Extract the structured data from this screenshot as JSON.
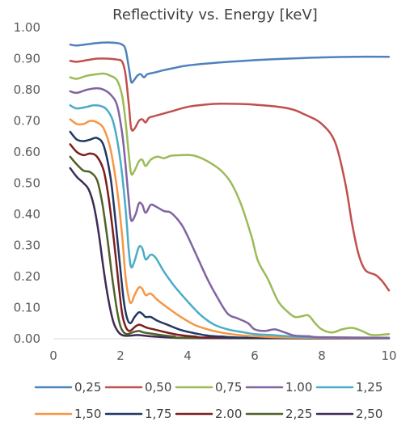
{
  "chart_data": {
    "type": "line",
    "title": "Reflectivity vs. Energy [keV]",
    "xlabel": "",
    "ylabel": "",
    "xlim": [
      0,
      10
    ],
    "ylim": [
      0,
      1
    ],
    "x_ticks": [
      "0",
      "2",
      "4",
      "6",
      "8",
      "10"
    ],
    "y_ticks": [
      "0.00",
      "0.10",
      "0.20",
      "0.30",
      "0.40",
      "0.50",
      "0.60",
      "0.70",
      "0.80",
      "0.90",
      "1.00"
    ],
    "grid": false,
    "legend_position": "bottom",
    "series": [
      {
        "name": "0,25",
        "color": "#4F81BD",
        "points": [
          [
            0.5,
            0.945
          ],
          [
            0.7,
            0.942
          ],
          [
            1.0,
            0.946
          ],
          [
            1.3,
            0.95
          ],
          [
            1.6,
            0.952
          ],
          [
            1.9,
            0.95
          ],
          [
            2.05,
            0.945
          ],
          [
            2.15,
            0.93
          ],
          [
            2.25,
            0.87
          ],
          [
            2.32,
            0.825
          ],
          [
            2.4,
            0.83
          ],
          [
            2.5,
            0.845
          ],
          [
            2.6,
            0.85
          ],
          [
            2.7,
            0.84
          ],
          [
            2.8,
            0.85
          ],
          [
            3.0,
            0.855
          ],
          [
            3.3,
            0.863
          ],
          [
            3.6,
            0.87
          ],
          [
            4.0,
            0.878
          ],
          [
            5.0,
            0.888
          ],
          [
            6.0,
            0.895
          ],
          [
            7.0,
            0.9
          ],
          [
            8.0,
            0.904
          ],
          [
            9.0,
            0.906
          ],
          [
            10.0,
            0.906
          ]
        ]
      },
      {
        "name": "0,50",
        "color": "#C0504D",
        "points": [
          [
            0.5,
            0.893
          ],
          [
            0.7,
            0.89
          ],
          [
            1.0,
            0.895
          ],
          [
            1.3,
            0.9
          ],
          [
            1.6,
            0.9
          ],
          [
            1.9,
            0.897
          ],
          [
            2.05,
            0.89
          ],
          [
            2.15,
            0.85
          ],
          [
            2.25,
            0.75
          ],
          [
            2.32,
            0.675
          ],
          [
            2.42,
            0.675
          ],
          [
            2.55,
            0.7
          ],
          [
            2.65,
            0.705
          ],
          [
            2.75,
            0.695
          ],
          [
            2.85,
            0.71
          ],
          [
            3.0,
            0.715
          ],
          [
            3.5,
            0.73
          ],
          [
            4.0,
            0.745
          ],
          [
            4.5,
            0.752
          ],
          [
            5.0,
            0.755
          ],
          [
            6.0,
            0.752
          ],
          [
            7.0,
            0.74
          ],
          [
            7.5,
            0.72
          ],
          [
            8.0,
            0.69
          ],
          [
            8.4,
            0.63
          ],
          [
            8.7,
            0.5
          ],
          [
            8.9,
            0.37
          ],
          [
            9.1,
            0.27
          ],
          [
            9.3,
            0.22
          ],
          [
            9.6,
            0.205
          ],
          [
            9.8,
            0.185
          ],
          [
            10.0,
            0.155
          ]
        ]
      },
      {
        "name": "0,75",
        "color": "#9BBB59",
        "points": [
          [
            0.5,
            0.84
          ],
          [
            0.7,
            0.835
          ],
          [
            1.0,
            0.845
          ],
          [
            1.3,
            0.85
          ],
          [
            1.5,
            0.852
          ],
          [
            1.7,
            0.845
          ],
          [
            1.9,
            0.83
          ],
          [
            2.05,
            0.78
          ],
          [
            2.15,
            0.7
          ],
          [
            2.25,
            0.59
          ],
          [
            2.32,
            0.53
          ],
          [
            2.42,
            0.54
          ],
          [
            2.55,
            0.57
          ],
          [
            2.65,
            0.575
          ],
          [
            2.75,
            0.555
          ],
          [
            2.9,
            0.575
          ],
          [
            3.1,
            0.585
          ],
          [
            3.3,
            0.58
          ],
          [
            3.5,
            0.588
          ],
          [
            3.8,
            0.59
          ],
          [
            4.1,
            0.59
          ],
          [
            4.3,
            0.585
          ],
          [
            4.6,
            0.57
          ],
          [
            5.0,
            0.54
          ],
          [
            5.3,
            0.5
          ],
          [
            5.6,
            0.43
          ],
          [
            5.9,
            0.33
          ],
          [
            6.1,
            0.25
          ],
          [
            6.4,
            0.19
          ],
          [
            6.7,
            0.12
          ],
          [
            7.0,
            0.085
          ],
          [
            7.2,
            0.07
          ],
          [
            7.4,
            0.072
          ],
          [
            7.6,
            0.075
          ],
          [
            7.8,
            0.05
          ],
          [
            8.0,
            0.03
          ],
          [
            8.3,
            0.02
          ],
          [
            8.6,
            0.03
          ],
          [
            8.9,
            0.035
          ],
          [
            9.2,
            0.025
          ],
          [
            9.5,
            0.012
          ],
          [
            10.0,
            0.015
          ]
        ]
      },
      {
        "name": "1.00",
        "color": "#8064A2",
        "points": [
          [
            0.5,
            0.795
          ],
          [
            0.7,
            0.79
          ],
          [
            1.0,
            0.8
          ],
          [
            1.3,
            0.805
          ],
          [
            1.5,
            0.8
          ],
          [
            1.7,
            0.785
          ],
          [
            1.9,
            0.75
          ],
          [
            2.05,
            0.66
          ],
          [
            2.15,
            0.56
          ],
          [
            2.25,
            0.44
          ],
          [
            2.32,
            0.38
          ],
          [
            2.45,
            0.4
          ],
          [
            2.55,
            0.435
          ],
          [
            2.65,
            0.43
          ],
          [
            2.75,
            0.405
          ],
          [
            2.9,
            0.43
          ],
          [
            3.05,
            0.425
          ],
          [
            3.3,
            0.41
          ],
          [
            3.5,
            0.405
          ],
          [
            3.8,
            0.37
          ],
          [
            4.0,
            0.33
          ],
          [
            4.3,
            0.26
          ],
          [
            4.6,
            0.19
          ],
          [
            4.9,
            0.13
          ],
          [
            5.2,
            0.08
          ],
          [
            5.5,
            0.065
          ],
          [
            5.8,
            0.05
          ],
          [
            6.0,
            0.03
          ],
          [
            6.3,
            0.025
          ],
          [
            6.6,
            0.03
          ],
          [
            6.9,
            0.02
          ],
          [
            7.2,
            0.01
          ],
          [
            7.6,
            0.008
          ],
          [
            8.0,
            0.005
          ],
          [
            10.0,
            0.003
          ]
        ]
      },
      {
        "name": "1,25",
        "color": "#4BACC6",
        "points": [
          [
            0.5,
            0.75
          ],
          [
            0.7,
            0.74
          ],
          [
            1.0,
            0.745
          ],
          [
            1.2,
            0.75
          ],
          [
            1.4,
            0.748
          ],
          [
            1.6,
            0.735
          ],
          [
            1.8,
            0.69
          ],
          [
            2.0,
            0.57
          ],
          [
            2.15,
            0.42
          ],
          [
            2.25,
            0.28
          ],
          [
            2.32,
            0.23
          ],
          [
            2.42,
            0.25
          ],
          [
            2.55,
            0.295
          ],
          [
            2.65,
            0.29
          ],
          [
            2.75,
            0.255
          ],
          [
            2.9,
            0.27
          ],
          [
            3.05,
            0.26
          ],
          [
            3.3,
            0.215
          ],
          [
            3.6,
            0.17
          ],
          [
            4.0,
            0.12
          ],
          [
            4.4,
            0.075
          ],
          [
            4.8,
            0.045
          ],
          [
            5.2,
            0.03
          ],
          [
            5.6,
            0.022
          ],
          [
            6.0,
            0.015
          ],
          [
            6.5,
            0.012
          ],
          [
            7.0,
            0.008
          ],
          [
            8.0,
            0.004
          ],
          [
            10.0,
            0.002
          ]
        ]
      },
      {
        "name": "1,50",
        "color": "#F79646",
        "points": [
          [
            0.5,
            0.705
          ],
          [
            0.7,
            0.69
          ],
          [
            0.9,
            0.69
          ],
          [
            1.1,
            0.7
          ],
          [
            1.3,
            0.695
          ],
          [
            1.5,
            0.675
          ],
          [
            1.7,
            0.61
          ],
          [
            1.9,
            0.48
          ],
          [
            2.05,
            0.33
          ],
          [
            2.15,
            0.2
          ],
          [
            2.25,
            0.13
          ],
          [
            2.32,
            0.115
          ],
          [
            2.42,
            0.14
          ],
          [
            2.55,
            0.165
          ],
          [
            2.65,
            0.16
          ],
          [
            2.75,
            0.14
          ],
          [
            2.9,
            0.145
          ],
          [
            3.1,
            0.125
          ],
          [
            3.4,
            0.1
          ],
          [
            3.8,
            0.07
          ],
          [
            4.2,
            0.045
          ],
          [
            4.6,
            0.03
          ],
          [
            5.0,
            0.02
          ],
          [
            5.5,
            0.012
          ],
          [
            6.0,
            0.008
          ],
          [
            7.0,
            0.004
          ],
          [
            10.0,
            0.001
          ]
        ]
      },
      {
        "name": "1,75",
        "color": "#1F3864",
        "points": [
          [
            0.5,
            0.665
          ],
          [
            0.7,
            0.64
          ],
          [
            0.9,
            0.635
          ],
          [
            1.1,
            0.64
          ],
          [
            1.3,
            0.645
          ],
          [
            1.5,
            0.62
          ],
          [
            1.7,
            0.52
          ],
          [
            1.85,
            0.38
          ],
          [
            2.0,
            0.22
          ],
          [
            2.1,
            0.12
          ],
          [
            2.2,
            0.065
          ],
          [
            2.3,
            0.05
          ],
          [
            2.42,
            0.07
          ],
          [
            2.55,
            0.085
          ],
          [
            2.65,
            0.08
          ],
          [
            2.75,
            0.07
          ],
          [
            2.9,
            0.07
          ],
          [
            3.1,
            0.058
          ],
          [
            3.4,
            0.045
          ],
          [
            3.8,
            0.028
          ],
          [
            4.2,
            0.018
          ],
          [
            4.6,
            0.01
          ],
          [
            5.0,
            0.007
          ],
          [
            6.0,
            0.003
          ],
          [
            10.0,
            0.001
          ]
        ]
      },
      {
        "name": "2.00",
        "color": "#7B1F1F",
        "points": [
          [
            0.5,
            0.625
          ],
          [
            0.7,
            0.6
          ],
          [
            0.9,
            0.59
          ],
          [
            1.1,
            0.595
          ],
          [
            1.3,
            0.585
          ],
          [
            1.5,
            0.54
          ],
          [
            1.65,
            0.45
          ],
          [
            1.8,
            0.32
          ],
          [
            1.95,
            0.17
          ],
          [
            2.05,
            0.08
          ],
          [
            2.15,
            0.04
          ],
          [
            2.25,
            0.025
          ],
          [
            2.35,
            0.03
          ],
          [
            2.45,
            0.04
          ],
          [
            2.55,
            0.045
          ],
          [
            2.65,
            0.042
          ],
          [
            2.8,
            0.035
          ],
          [
            3.0,
            0.03
          ],
          [
            3.3,
            0.022
          ],
          [
            3.7,
            0.013
          ],
          [
            4.2,
            0.007
          ],
          [
            5.0,
            0.003
          ],
          [
            10.0,
            0.001
          ]
        ]
      },
      {
        "name": "2,25",
        "color": "#4F6228",
        "points": [
          [
            0.5,
            0.585
          ],
          [
            0.7,
            0.56
          ],
          [
            0.9,
            0.54
          ],
          [
            1.1,
            0.535
          ],
          [
            1.3,
            0.51
          ],
          [
            1.45,
            0.44
          ],
          [
            1.6,
            0.33
          ],
          [
            1.75,
            0.2
          ],
          [
            1.9,
            0.09
          ],
          [
            2.0,
            0.04
          ],
          [
            2.1,
            0.02
          ],
          [
            2.2,
            0.015
          ],
          [
            2.3,
            0.018
          ],
          [
            2.4,
            0.022
          ],
          [
            2.55,
            0.025
          ],
          [
            2.7,
            0.02
          ],
          [
            2.9,
            0.017
          ],
          [
            3.2,
            0.012
          ],
          [
            3.6,
            0.007
          ],
          [
            4.2,
            0.003
          ],
          [
            10.0,
            0.001
          ]
        ]
      },
      {
        "name": "2,50",
        "color": "#3F2A56",
        "points": [
          [
            0.5,
            0.548
          ],
          [
            0.7,
            0.52
          ],
          [
            0.9,
            0.5
          ],
          [
            1.05,
            0.48
          ],
          [
            1.2,
            0.43
          ],
          [
            1.35,
            0.34
          ],
          [
            1.5,
            0.22
          ],
          [
            1.65,
            0.12
          ],
          [
            1.8,
            0.05
          ],
          [
            1.95,
            0.02
          ],
          [
            2.1,
            0.01
          ],
          [
            2.3,
            0.01
          ],
          [
            2.5,
            0.012
          ],
          [
            2.7,
            0.01
          ],
          [
            3.0,
            0.007
          ],
          [
            3.5,
            0.004
          ],
          [
            4.5,
            0.002
          ],
          [
            10.0,
            0.001
          ]
        ]
      }
    ]
  }
}
